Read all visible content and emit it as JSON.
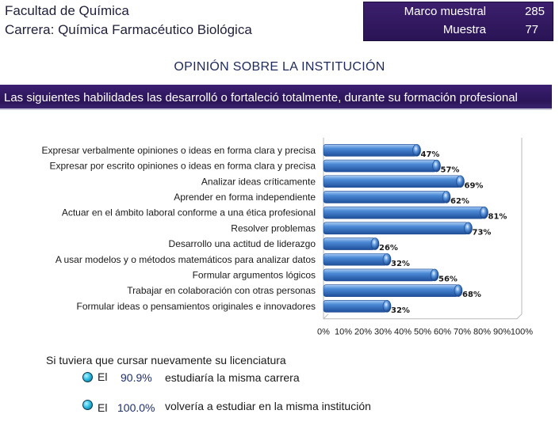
{
  "header": {
    "faculty": "Facultad de Química",
    "career": "Carrera: Química Farmacéutico Biológica"
  },
  "sample": {
    "frame_label": "Marco muestral",
    "frame_value": "285",
    "sample_label": "Muestra",
    "sample_value": "77"
  },
  "section_title": "OPINIÓN SOBRE LA INSTITUCIÓN",
  "banner": "Las siguientes habilidades las desarrolló o fortaleció totalmente, durante su formación profesional",
  "colors": {
    "bar": "#3a78c9",
    "bar_highlight": "#9cc3f0",
    "banner": "#2b1558"
  },
  "chart_data": {
    "type": "bar",
    "orientation": "horizontal",
    "categories": [
      "Expresar verbalmente opiniones o ideas en forma clara y precisa",
      "Expresar por escrito opiniones o ideas en forma clara y precisa",
      "Analizar ideas críticamente",
      "Aprender en forma independiente",
      "Actuar en el ámbito laboral conforme a una ética profesional",
      "Resolver problemas",
      "Desarrollo una actitud de liderazgo",
      "A usar modelos y o métodos matemáticos para analizar datos",
      "Formular argumentos lógicos",
      "Trabajar en colaboración con otras personas",
      "Formular ideas o pensamientos originales e innovadores"
    ],
    "values": [
      47,
      57,
      69,
      62,
      81,
      73,
      26,
      32,
      56,
      68,
      32
    ],
    "value_labels": [
      "47%",
      "57%",
      "69%",
      "62%",
      "81%",
      "73%",
      "26%",
      "32%",
      "56%",
      "68%",
      "32%"
    ],
    "xlim": [
      0,
      100
    ],
    "ticks": [
      "0%",
      "10%",
      "20%",
      "30%",
      "40%",
      "50%",
      "60%",
      "70%",
      "80%",
      "90%",
      "100%"
    ],
    "grid": false
  },
  "survey": {
    "question": "Si tuviera que cursar nuevamente su licenciatura",
    "answers": [
      {
        "prefix": "El",
        "percent": "90.9%",
        "text": "estudiaría la misma carrera"
      },
      {
        "prefix": "El",
        "percent": "100.0%",
        "text": "volvería a estudiar en la misma institución"
      }
    ]
  }
}
